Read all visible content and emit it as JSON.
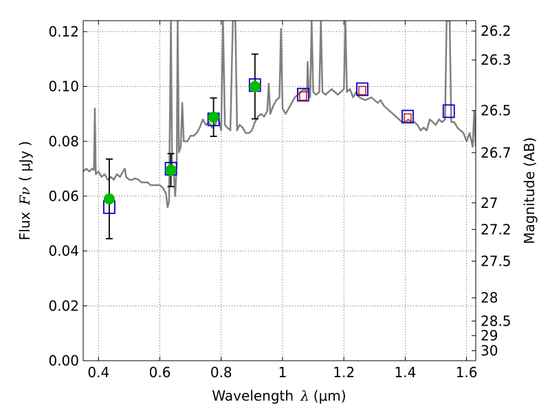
{
  "chart_data": {
    "type": "scatter",
    "xlabel": {
      "prefix": "Wavelength",
      "symbol": "λ",
      "unit": "(μm)"
    },
    "ylabel": {
      "prefix": "Flux",
      "symbol": "Fν",
      "unit": "( μJy )"
    },
    "y2label": "Magnitude (AB)",
    "xlim": [
      0.35,
      1.63
    ],
    "ylim": [
      0.0,
      0.124
    ],
    "grid": true,
    "x_ticks": [
      {
        "value": 0.4,
        "label": "0.4"
      },
      {
        "value": 0.6,
        "label": "0.6"
      },
      {
        "value": 0.8,
        "label": "0.8"
      },
      {
        "value": 1.0,
        "label": "1"
      },
      {
        "value": 1.2,
        "label": "1.2"
      },
      {
        "value": 1.4,
        "label": "1.4"
      },
      {
        "value": 1.6,
        "label": "1.6"
      }
    ],
    "y_ticks": [
      {
        "value": 0.0,
        "label": "0.00"
      },
      {
        "value": 0.02,
        "label": "0.02"
      },
      {
        "value": 0.04,
        "label": "0.04"
      },
      {
        "value": 0.06,
        "label": "0.06"
      },
      {
        "value": 0.08,
        "label": "0.08"
      },
      {
        "value": 0.1,
        "label": "0.10"
      },
      {
        "value": 0.12,
        "label": "0.12"
      }
    ],
    "mag_ticks": [
      {
        "value": 26.2,
        "label": "26.2"
      },
      {
        "value": 26.3,
        "label": "26.3"
      },
      {
        "value": 26.5,
        "label": "26.5"
      },
      {
        "value": 26.7,
        "label": "26.7"
      },
      {
        "value": 27.0,
        "label": "27"
      },
      {
        "value": 27.2,
        "label": "27.2"
      },
      {
        "value": 27.5,
        "label": "27.5"
      },
      {
        "value": 28.0,
        "label": "28"
      },
      {
        "value": 28.5,
        "label": "28.5"
      },
      {
        "value": 29.0,
        "label": "29"
      },
      {
        "value": 30.0,
        "label": "30"
      }
    ],
    "model_spectrum": {
      "color": "#808080",
      "points": [
        [
          0.35,
          0.069
        ],
        [
          0.36,
          0.07
        ],
        [
          0.37,
          0.069
        ],
        [
          0.38,
          0.07
        ],
        [
          0.385,
          0.0695
        ],
        [
          0.388,
          0.092
        ],
        [
          0.391,
          0.068
        ],
        [
          0.4,
          0.069
        ],
        [
          0.41,
          0.067
        ],
        [
          0.42,
          0.068
        ],
        [
          0.43,
          0.066
        ],
        [
          0.44,
          0.067
        ],
        [
          0.45,
          0.066
        ],
        [
          0.46,
          0.068
        ],
        [
          0.47,
          0.067
        ],
        [
          0.48,
          0.069
        ],
        [
          0.486,
          0.07
        ],
        [
          0.49,
          0.067
        ],
        [
          0.5,
          0.066
        ],
        [
          0.51,
          0.066
        ],
        [
          0.52,
          0.0665
        ],
        [
          0.53,
          0.066
        ],
        [
          0.54,
          0.065
        ],
        [
          0.55,
          0.065
        ],
        [
          0.56,
          0.065
        ],
        [
          0.57,
          0.064
        ],
        [
          0.58,
          0.064
        ],
        [
          0.59,
          0.064
        ],
        [
          0.6,
          0.064
        ],
        [
          0.61,
          0.063
        ],
        [
          0.62,
          0.061
        ],
        [
          0.625,
          0.056
        ],
        [
          0.63,
          0.058
        ],
        [
          0.636,
          0.124
        ],
        [
          0.64,
          0.069
        ],
        [
          0.645,
          0.069
        ],
        [
          0.65,
          0.06
        ],
        [
          0.655,
          0.072
        ],
        [
          0.658,
          0.124
        ],
        [
          0.662,
          0.076
        ],
        [
          0.668,
          0.078
        ],
        [
          0.673,
          0.094
        ],
        [
          0.678,
          0.08
        ],
        [
          0.69,
          0.08
        ],
        [
          0.7,
          0.082
        ],
        [
          0.71,
          0.082
        ],
        [
          0.72,
          0.083
        ],
        [
          0.73,
          0.085
        ],
        [
          0.74,
          0.088
        ],
        [
          0.75,
          0.086
        ],
        [
          0.76,
          0.087
        ],
        [
          0.77,
          0.085
        ],
        [
          0.78,
          0.086
        ],
        [
          0.79,
          0.089
        ],
        [
          0.8,
          0.084
        ],
        [
          0.806,
          0.124
        ],
        [
          0.812,
          0.086
        ],
        [
          0.82,
          0.085
        ],
        [
          0.83,
          0.084
        ],
        [
          0.838,
          0.124
        ],
        [
          0.846,
          0.124
        ],
        [
          0.852,
          0.084
        ],
        [
          0.86,
          0.086
        ],
        [
          0.87,
          0.085
        ],
        [
          0.88,
          0.083
        ],
        [
          0.89,
          0.083
        ],
        [
          0.9,
          0.084
        ],
        [
          0.91,
          0.087
        ],
        [
          0.92,
          0.089
        ],
        [
          0.93,
          0.09
        ],
        [
          0.94,
          0.089
        ],
        [
          0.95,
          0.091
        ],
        [
          0.955,
          0.101
        ],
        [
          0.96,
          0.09
        ],
        [
          0.97,
          0.093
        ],
        [
          0.98,
          0.095
        ],
        [
          0.99,
          0.096
        ],
        [
          0.995,
          0.121
        ],
        [
          1.0,
          0.092
        ],
        [
          1.01,
          0.09
        ],
        [
          1.02,
          0.092
        ],
        [
          1.03,
          0.094
        ],
        [
          1.04,
          0.096
        ],
        [
          1.05,
          0.097
        ],
        [
          1.06,
          0.098
        ],
        [
          1.07,
          0.099
        ],
        [
          1.08,
          0.098
        ],
        [
          1.082,
          0.109
        ],
        [
          1.085,
          0.099
        ],
        [
          1.09,
          0.096
        ],
        [
          1.095,
          0.124
        ],
        [
          1.1,
          0.098
        ],
        [
          1.11,
          0.097
        ],
        [
          1.12,
          0.098
        ],
        [
          1.125,
          0.124
        ],
        [
          1.13,
          0.098
        ],
        [
          1.14,
          0.097
        ],
        [
          1.15,
          0.098
        ],
        [
          1.16,
          0.099
        ],
        [
          1.17,
          0.098
        ],
        [
          1.18,
          0.097
        ],
        [
          1.19,
          0.098
        ],
        [
          1.2,
          0.099
        ],
        [
          1.205,
          0.124
        ],
        [
          1.21,
          0.098
        ],
        [
          1.22,
          0.099
        ],
        [
          1.23,
          0.096
        ],
        [
          1.24,
          0.098
        ],
        [
          1.25,
          0.096
        ],
        [
          1.27,
          0.095
        ],
        [
          1.29,
          0.096
        ],
        [
          1.3,
          0.095
        ],
        [
          1.31,
          0.094
        ],
        [
          1.32,
          0.095
        ],
        [
          1.33,
          0.093
        ],
        [
          1.34,
          0.092
        ],
        [
          1.35,
          0.091
        ],
        [
          1.36,
          0.09
        ],
        [
          1.37,
          0.089
        ],
        [
          1.38,
          0.088
        ],
        [
          1.39,
          0.087
        ],
        [
          1.4,
          0.087
        ],
        [
          1.41,
          0.088
        ],
        [
          1.42,
          0.087
        ],
        [
          1.43,
          0.087
        ],
        [
          1.44,
          0.086
        ],
        [
          1.45,
          0.084
        ],
        [
          1.46,
          0.085
        ],
        [
          1.47,
          0.084
        ],
        [
          1.48,
          0.088
        ],
        [
          1.49,
          0.087
        ],
        [
          1.5,
          0.086
        ],
        [
          1.51,
          0.088
        ],
        [
          1.52,
          0.087
        ],
        [
          1.53,
          0.088
        ],
        [
          1.535,
          0.124
        ],
        [
          1.545,
          0.124
        ],
        [
          1.55,
          0.087
        ],
        [
          1.56,
          0.087
        ],
        [
          1.57,
          0.085
        ],
        [
          1.58,
          0.084
        ],
        [
          1.59,
          0.083
        ],
        [
          1.6,
          0.08
        ],
        [
          1.61,
          0.083
        ],
        [
          1.62,
          0.078
        ],
        [
          1.625,
          0.091
        ],
        [
          1.63,
          0.078
        ]
      ]
    },
    "observed": {
      "color": "#00bb00",
      "points": [
        {
          "x": 0.435,
          "y": 0.059,
          "err": 0.0145
        },
        {
          "x": 0.636,
          "y": 0.0695,
          "err": 0.006
        },
        {
          "x": 0.775,
          "y": 0.0888,
          "err": 0.007
        },
        {
          "x": 0.91,
          "y": 0.1,
          "err": 0.0118
        }
      ]
    },
    "model_photometry": {
      "color": "#0000cc",
      "points": [
        {
          "x": 0.435,
          "y": 0.056
        },
        {
          "x": 0.636,
          "y": 0.07
        },
        {
          "x": 0.775,
          "y": 0.088
        },
        {
          "x": 0.91,
          "y": 0.1005
        },
        {
          "x": 1.067,
          "y": 0.097
        },
        {
          "x": 1.26,
          "y": 0.099
        },
        {
          "x": 1.408,
          "y": 0.089
        },
        {
          "x": 1.542,
          "y": 0.091
        }
      ]
    },
    "upper_limit_markers": {
      "color": "#cc0000",
      "points": [
        {
          "x": 1.067,
          "y": 0.0965
        },
        {
          "x": 1.26,
          "y": 0.0985
        },
        {
          "x": 1.408,
          "y": 0.0885
        }
      ]
    },
    "errorbar_color": "#000000",
    "grid_color": "#555555"
  }
}
